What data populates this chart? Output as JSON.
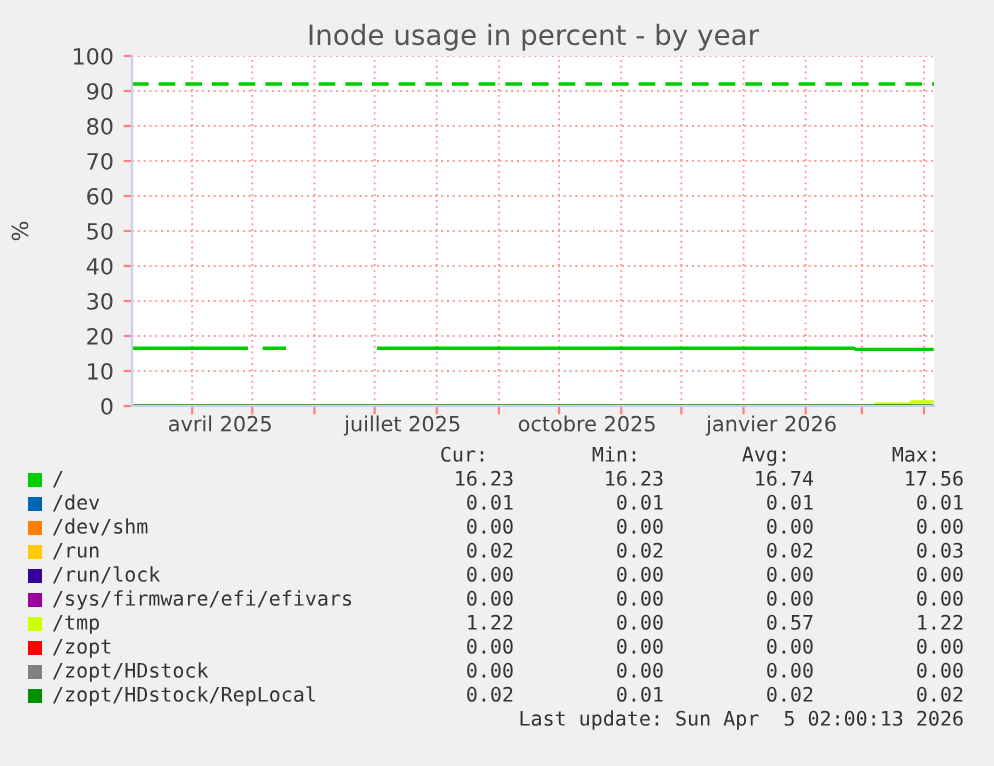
{
  "chart_data": {
    "type": "line",
    "title": "Inode usage in percent - by year",
    "ylabel": "%",
    "xlim": [
      "2025-03-02",
      "2026-04-06"
    ],
    "xticks": [
      {
        "value": "2025-04-01",
        "label": null
      },
      {
        "value": "2025-04-15",
        "label": "avril 2025"
      },
      {
        "value": "2025-05-01",
        "label": null
      },
      {
        "value": "2025-06-01",
        "label": null
      },
      {
        "value": "2025-07-01",
        "label": null
      },
      {
        "value": "2025-07-15",
        "label": "juillet 2025"
      },
      {
        "value": "2025-08-01",
        "label": null
      },
      {
        "value": "2025-09-01",
        "label": null
      },
      {
        "value": "2025-10-01",
        "label": null
      },
      {
        "value": "2025-10-15",
        "label": "octobre 2025"
      },
      {
        "value": "2025-11-01",
        "label": null
      },
      {
        "value": "2025-12-01",
        "label": null
      },
      {
        "value": "2026-01-01",
        "label": null
      },
      {
        "value": "2026-01-15",
        "label": "janvier 2026"
      },
      {
        "value": "2026-02-01",
        "label": null
      },
      {
        "value": "2026-03-01",
        "label": null
      },
      {
        "value": "2026-04-01",
        "label": null
      }
    ],
    "ylim": [
      0,
      100
    ],
    "yticks": [
      0,
      10,
      20,
      30,
      40,
      50,
      60,
      70,
      80,
      90,
      100
    ],
    "grid": true,
    "legend": "bottom",
    "ref_lines": [
      {
        "axis": "y",
        "value": 92,
        "color": "#00cc00",
        "line_style": "dashed"
      }
    ],
    "series": [
      {
        "name": "/",
        "color": "#00cc00",
        "x": [
          "2025-03-02",
          "2025-04-28",
          "2025-04-29",
          "2025-05-07",
          "2025-05-17",
          "2025-05-18",
          "2025-07-03",
          "2026-02-25",
          "2026-02-26",
          "2026-04-05"
        ],
        "values": [
          16.5,
          16.5,
          null,
          16.5,
          16.5,
          null,
          16.5,
          16.5,
          16.2,
          16.2
        ]
      },
      {
        "name": "/dev",
        "color": "#0066b3"
      },
      {
        "name": "/dev/shm",
        "color": "#ff8000"
      },
      {
        "name": "/run",
        "color": "#ffcc00"
      },
      {
        "name": "/run/lock",
        "color": "#330099"
      },
      {
        "name": "/sys/firmware/efi/efivars",
        "color": "#990099"
      },
      {
        "name": "/tmp",
        "color": "#ccff00",
        "x": [
          "2026-03-08",
          "2026-03-25",
          "2026-03-26",
          "2026-04-05"
        ],
        "values": [
          0.5,
          0.5,
          1.2,
          1.2
        ]
      },
      {
        "name": "/zopt",
        "color": "#ff0000"
      },
      {
        "name": "/zopt/HDstock",
        "color": "#808080"
      },
      {
        "name": "/zopt/HDstock/RepLocal",
        "color": "#008f00",
        "x": [
          "2025-03-02",
          "2026-04-05"
        ],
        "values": [
          0,
          0
        ]
      }
    ],
    "annotations": [
      "Cur:",
      "Min:",
      "Avg:",
      "Max:",
      "16.23",
      "16.23",
      "16.74",
      "17.56",
      "0.01",
      "0.01",
      "0.01",
      "0.01",
      "0.00",
      "0.00",
      "0.00",
      "0.00",
      "0.02",
      "0.02",
      "0.02",
      "0.03",
      "0.00",
      "0.00",
      "0.00",
      "0.00",
      "0.00",
      "0.00",
      "0.00",
      "0.00",
      "1.22",
      "0.00",
      "0.57",
      "1.22",
      "0.00",
      "0.00",
      "0.00",
      "0.00",
      "0.00",
      "0.00",
      "0.00",
      "0.00",
      "0.02",
      "0.01",
      "0.02",
      "0.02",
      "Last update: Sun Apr  5 02:00:13 2026"
    ]
  }
}
